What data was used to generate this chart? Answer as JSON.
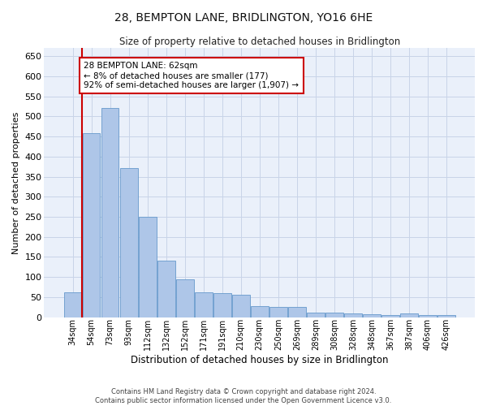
{
  "title": "28, BEMPTON LANE, BRIDLINGTON, YO16 6HE",
  "subtitle": "Size of property relative to detached houses in Bridlington",
  "xlabel": "Distribution of detached houses by size in Bridlington",
  "ylabel": "Number of detached properties",
  "categories": [
    "34sqm",
    "54sqm",
    "73sqm",
    "93sqm",
    "112sqm",
    "132sqm",
    "152sqm",
    "171sqm",
    "191sqm",
    "210sqm",
    "230sqm",
    "250sqm",
    "269sqm",
    "289sqm",
    "308sqm",
    "328sqm",
    "348sqm",
    "367sqm",
    "387sqm",
    "406sqm",
    "426sqm"
  ],
  "values": [
    62,
    458,
    520,
    372,
    249,
    141,
    95,
    63,
    59,
    56,
    27,
    26,
    26,
    12,
    12,
    9,
    8,
    6,
    9,
    6,
    5
  ],
  "bar_color": "#aec6e8",
  "bar_edgecolor": "#6699cc",
  "vline_color": "#cc0000",
  "annotation_box_text": "28 BEMPTON LANE: 62sqm\n← 8% of detached houses are smaller (177)\n92% of semi-detached houses are larger (1,907) →",
  "annotation_box_color": "#cc0000",
  "ylim": [
    0,
    670
  ],
  "yticks": [
    0,
    50,
    100,
    150,
    200,
    250,
    300,
    350,
    400,
    450,
    500,
    550,
    600,
    650
  ],
  "grid_color": "#c8d4e8",
  "background_color": "#eaf0fa",
  "footer_line1": "Contains HM Land Registry data © Crown copyright and database right 2024.",
  "footer_line2": "Contains public sector information licensed under the Open Government Licence v3.0."
}
